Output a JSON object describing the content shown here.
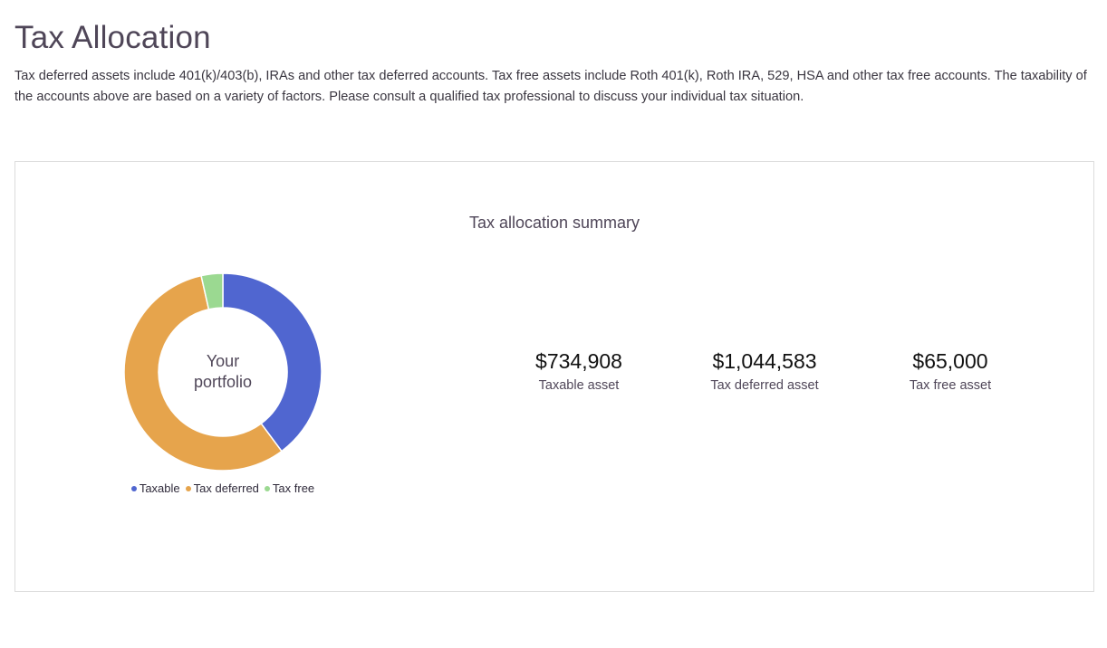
{
  "page": {
    "title": "Tax Allocation",
    "description": "Tax deferred assets include 401(k)/403(b), IRAs and other tax deferred accounts. Tax free assets include Roth 401(k), Roth IRA, 529, HSA and other tax free accounts. The taxability of the accounts above are based on a variety of factors. Please consult a qualified tax professional to discuss your individual tax situation."
  },
  "summary": {
    "title": "Tax allocation summary",
    "center_line1": "Your",
    "center_line2": "portfolio",
    "legend": [
      {
        "label": "Taxable",
        "color": "#5066d0"
      },
      {
        "label": "Tax deferred",
        "color": "#e6a44c"
      },
      {
        "label": "Tax free",
        "color": "#9bd991"
      }
    ],
    "stats": [
      {
        "value": "$734,908",
        "label": "Taxable asset"
      },
      {
        "value": "$1,044,583",
        "label": "Tax deferred asset"
      },
      {
        "value": "$65,000",
        "label": "Tax free asset"
      }
    ]
  },
  "chart_data": {
    "type": "pie",
    "categories": [
      "Taxable",
      "Tax deferred",
      "Tax free"
    ],
    "values": [
      734908,
      1044583,
      65000
    ],
    "colors": [
      "#5066d0",
      "#e6a44c",
      "#9bd991"
    ],
    "title": "Tax allocation summary"
  }
}
